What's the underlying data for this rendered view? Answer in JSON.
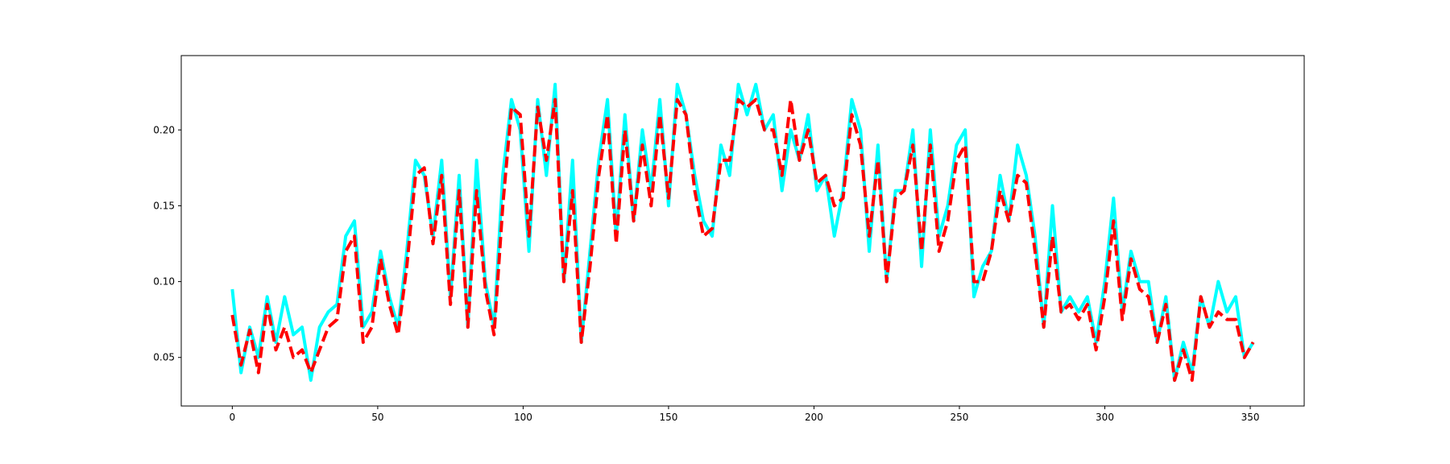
{
  "chart_data": {
    "type": "line",
    "x": [
      0,
      3,
      6,
      9,
      12,
      15,
      18,
      21,
      24,
      27,
      30,
      33,
      36,
      39,
      42,
      45,
      48,
      51,
      54,
      57,
      60,
      63,
      66,
      69,
      72,
      75,
      78,
      81,
      84,
      87,
      90,
      93,
      96,
      99,
      102,
      105,
      108,
      111,
      114,
      117,
      120,
      123,
      126,
      129,
      132,
      135,
      138,
      141,
      144,
      147,
      150,
      153,
      156,
      159,
      162,
      165,
      168,
      171,
      174,
      177,
      180,
      183,
      186,
      189,
      192,
      195,
      198,
      201,
      204,
      207,
      210,
      213,
      216,
      219,
      222,
      225,
      228,
      231,
      234,
      237,
      240,
      243,
      246,
      249,
      252,
      255,
      258,
      261,
      264,
      267,
      270,
      273,
      276,
      279,
      282,
      285,
      288,
      291,
      294,
      297,
      300,
      303,
      306,
      309,
      312,
      315,
      318,
      321,
      324,
      327,
      330,
      333,
      336,
      339,
      342,
      345,
      348,
      351
    ],
    "series": [
      {
        "color": "#00ffff",
        "linestyle": "solid",
        "values": [
          0.095,
          0.04,
          0.07,
          0.05,
          0.09,
          0.06,
          0.09,
          0.065,
          0.07,
          0.035,
          0.07,
          0.08,
          0.085,
          0.13,
          0.14,
          0.07,
          0.08,
          0.12,
          0.09,
          0.07,
          0.12,
          0.18,
          0.17,
          0.13,
          0.18,
          0.09,
          0.17,
          0.07,
          0.18,
          0.1,
          0.07,
          0.17,
          0.22,
          0.2,
          0.12,
          0.22,
          0.17,
          0.23,
          0.1,
          0.18,
          0.06,
          0.12,
          0.18,
          0.22,
          0.13,
          0.21,
          0.14,
          0.2,
          0.16,
          0.22,
          0.15,
          0.23,
          0.21,
          0.17,
          0.14,
          0.13,
          0.19,
          0.17,
          0.23,
          0.21,
          0.23,
          0.2,
          0.21,
          0.16,
          0.2,
          0.18,
          0.21,
          0.16,
          0.17,
          0.13,
          0.16,
          0.22,
          0.2,
          0.12,
          0.19,
          0.1,
          0.16,
          0.16,
          0.2,
          0.11,
          0.2,
          0.13,
          0.15,
          0.19,
          0.2,
          0.09,
          0.11,
          0.12,
          0.17,
          0.14,
          0.19,
          0.17,
          0.13,
          0.07,
          0.15,
          0.08,
          0.09,
          0.08,
          0.09,
          0.06,
          0.1,
          0.155,
          0.08,
          0.12,
          0.1,
          0.1,
          0.06,
          0.09,
          0.035,
          0.06,
          0.04,
          0.09,
          0.07,
          0.1,
          0.08,
          0.09,
          0.05,
          0.06
        ]
      },
      {
        "color": "#ff0000",
        "linestyle": "dashed",
        "values": [
          0.078,
          0.045,
          0.068,
          0.04,
          0.085,
          0.055,
          0.07,
          0.05,
          0.055,
          0.04,
          0.055,
          0.07,
          0.075,
          0.12,
          0.13,
          0.06,
          0.07,
          0.115,
          0.085,
          0.065,
          0.11,
          0.17,
          0.175,
          0.125,
          0.17,
          0.085,
          0.16,
          0.07,
          0.16,
          0.095,
          0.065,
          0.15,
          0.215,
          0.21,
          0.13,
          0.215,
          0.18,
          0.22,
          0.1,
          0.16,
          0.06,
          0.11,
          0.17,
          0.21,
          0.125,
          0.2,
          0.14,
          0.19,
          0.15,
          0.21,
          0.155,
          0.22,
          0.21,
          0.16,
          0.13,
          0.135,
          0.18,
          0.18,
          0.22,
          0.215,
          0.22,
          0.2,
          0.2,
          0.17,
          0.22,
          0.18,
          0.2,
          0.165,
          0.17,
          0.15,
          0.155,
          0.21,
          0.19,
          0.13,
          0.18,
          0.1,
          0.155,
          0.16,
          0.19,
          0.12,
          0.19,
          0.12,
          0.14,
          0.18,
          0.19,
          0.1,
          0.1,
          0.12,
          0.16,
          0.14,
          0.17,
          0.165,
          0.12,
          0.07,
          0.13,
          0.08,
          0.085,
          0.075,
          0.085,
          0.055,
          0.09,
          0.14,
          0.075,
          0.115,
          0.095,
          0.09,
          0.06,
          0.085,
          0.035,
          0.055,
          0.035,
          0.09,
          0.07,
          0.08,
          0.075,
          0.075,
          0.05,
          0.06
        ]
      }
    ],
    "xlim": [
      -17.55,
      368.55
    ],
    "ylim": [
      0.018,
      0.249
    ],
    "xticks": [
      0,
      50,
      100,
      150,
      200,
      250,
      300,
      350
    ],
    "yticks": [
      0.05,
      {
        "value": 0.1,
        "label": "0.10"
      },
      0.15,
      {
        "value": 0.2,
        "label": "0.20"
      }
    ],
    "grid": false
  }
}
